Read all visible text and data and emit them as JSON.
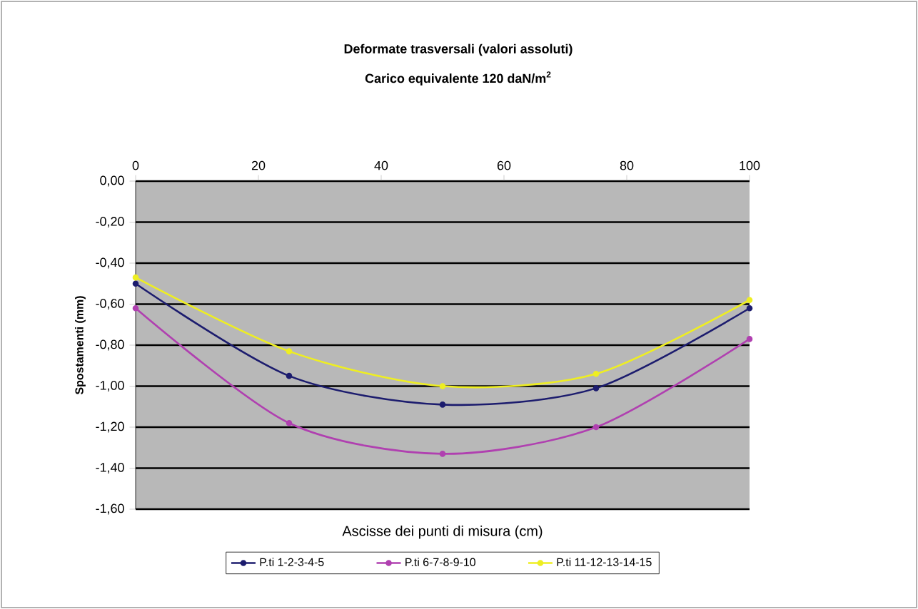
{
  "chart_data": {
    "type": "line",
    "title": "Deformate trasversali (valori assoluti)",
    "subtitle": "Carico equivalente 120 daN/m$^{2}$",
    "xlabel": "Ascisse dei punti di misura (cm)",
    "ylabel": "Spostamenti (mm)",
    "x": [
      0,
      25,
      50,
      75,
      100
    ],
    "series": [
      {
        "name": "P.ti 1-2-3-4-5",
        "color": "#1c1c6e",
        "values": [
          -0.5,
          -0.95,
          -1.09,
          -1.01,
          -0.62
        ]
      },
      {
        "name": "P.ti 6-7-8-9-10",
        "color": "#b040b0",
        "values": [
          -0.62,
          -1.18,
          -1.33,
          -1.2,
          -0.77
        ]
      },
      {
        "name": "P.ti 11-12-13-14-15",
        "color": "#eeee22",
        "values": [
          -0.47,
          -0.83,
          -1.0,
          -0.94,
          -0.58
        ]
      }
    ],
    "xlim": [
      0,
      100
    ],
    "xticks": [
      0,
      20,
      40,
      60,
      80,
      100
    ],
    "ylim": [
      -1.6,
      0
    ],
    "yticks": [
      {
        "value": 0,
        "label": "0,00"
      },
      {
        "value": -0.2,
        "label": "-0,20"
      },
      {
        "value": -0.4,
        "label": "-0,40"
      },
      {
        "value": -0.6,
        "label": "-0,60"
      },
      {
        "value": -0.8,
        "label": "-0,80"
      },
      {
        "value": -1.0,
        "label": "-1,00"
      },
      {
        "value": -1.2,
        "label": "-1,20"
      },
      {
        "value": -1.4,
        "label": "-1,40"
      },
      {
        "value": -1.6,
        "label": "-1,60"
      }
    ],
    "grid": "y",
    "legend": "bottom",
    "marker": "circle",
    "line_style": "solid"
  }
}
